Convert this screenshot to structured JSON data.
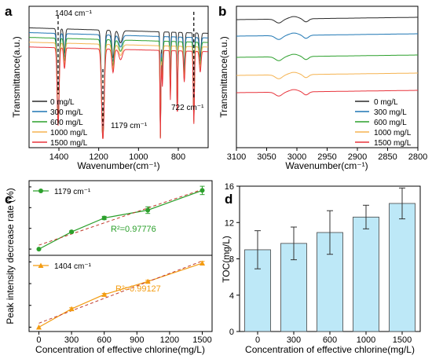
{
  "colors": {
    "0": "#2a2a2a",
    "300": "#1f77b4",
    "600": "#2ca02c",
    "1000": "#f5b351",
    "1500": "#e8343c",
    "fit_1179": "#2ca02c",
    "fit_1404": "#f39c12",
    "bar_fill": "#bde8f7"
  },
  "chart_data": [
    {
      "panel": "a",
      "type": "line",
      "xlabel": "Wavenumber(cm⁻¹)",
      "ylabel": "Transmittance(a.u.)",
      "xlim": [
        1550,
        650
      ],
      "x_reversed": true,
      "xticks": [
        "1400",
        "1200",
        "1000",
        "800"
      ],
      "annotations": [
        "1404 cm⁻¹",
        "1179 cm⁻¹",
        "722 cm⁻¹"
      ],
      "series": [
        {
          "name": "0 mg/L",
          "color_key": "0"
        },
        {
          "name": "300 mg/L",
          "color_key": "300"
        },
        {
          "name": "600 mg/L",
          "color_key": "600"
        },
        {
          "name": "1000 mg/L",
          "color_key": "1000"
        },
        {
          "name": "1500 mg/L",
          "color_key": "1500"
        }
      ]
    },
    {
      "panel": "b",
      "type": "line",
      "xlabel": "Wavenumber(cm⁻¹)",
      "ylabel": "Transmittance(a.u.)",
      "xlim": [
        3100,
        2800
      ],
      "x_reversed": true,
      "xticks": [
        "3100",
        "3050",
        "3000",
        "2950",
        "2900",
        "2850",
        "2800"
      ],
      "series": [
        {
          "name": "0 mg/L",
          "color_key": "0"
        },
        {
          "name": "300 mg/L",
          "color_key": "300"
        },
        {
          "name": "600 mg/L",
          "color_key": "600"
        },
        {
          "name": "1000 mg/L",
          "color_key": "1000"
        },
        {
          "name": "1500 mg/L",
          "color_key": "1500"
        }
      ]
    },
    {
      "panel": "c",
      "type": "scatter",
      "xlabel": "Concentration of effective chlorine(mg/L)",
      "ylabel": "Peak intensity decrease rate (%)",
      "x": [
        0,
        300,
        600,
        1000,
        1500
      ],
      "xticks": [
        "0",
        "300",
        "600",
        "900",
        "1200",
        "1500"
      ],
      "xlim": [
        -90,
        1590
      ],
      "series": [
        {
          "name": "1179 cm⁻¹",
          "color_key": "fit_1179",
          "values": [
            0,
            8.3,
            15.0,
            18.8,
            28.3
          ],
          "errors": [
            0,
            0.5,
            0.8,
            1.6,
            2.0
          ],
          "r2": "R²=0.97776",
          "ylim": [
            -3,
            33
          ]
        },
        {
          "name": "1404 cm⁻¹",
          "color_key": "fit_1404",
          "values": [
            0,
            8.4,
            15.0,
            21.0,
            29.4
          ],
          "errors": [
            0,
            0.5,
            0.5,
            0.5,
            0.8
          ],
          "r2": "R²=0.99127",
          "ylim": [
            -2,
            33
          ]
        }
      ]
    },
    {
      "panel": "d",
      "type": "bar",
      "xlabel": "Concentration of effective chlorine(mg/L)",
      "ylabel": "TOC(mg/L)",
      "categories": [
        "0",
        "300",
        "600",
        "1000",
        "1500"
      ],
      "values": [
        9.0,
        9.7,
        10.9,
        12.6,
        14.1
      ],
      "errors": [
        2.1,
        1.8,
        2.4,
        1.3,
        1.7
      ],
      "ylim": [
        0,
        16
      ],
      "yticks": [
        "0",
        "4",
        "8",
        "12",
        "16"
      ]
    }
  ]
}
